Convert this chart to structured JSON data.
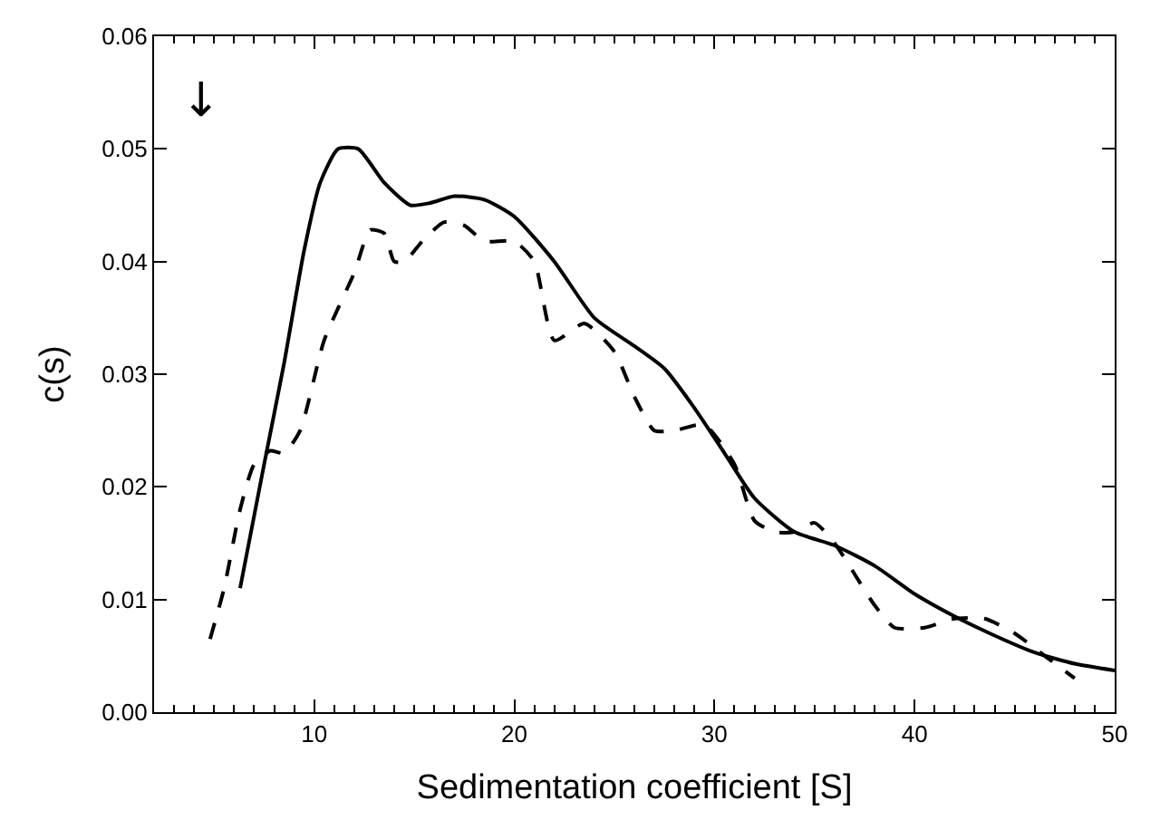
{
  "chart_data": {
    "type": "line",
    "xlabel": "Sedimentation coefficient [S]",
    "ylabel": "c(s)",
    "xlim": [
      2,
      50
    ],
    "xticks": [
      10,
      20,
      30,
      40,
      50
    ],
    "ylim": [
      0,
      0.06
    ],
    "yticks": [
      {
        "value": 0,
        "label": "0.00"
      },
      0.01,
      0.02,
      0.03,
      0.04,
      0.05,
      0.06
    ],
    "marker": "none",
    "annotations": [
      "↓"
    ],
    "series": [
      {
        "color": "#000000",
        "line_style": "solid",
        "x": [
          6.3,
          7.5,
          8.5,
          9.5,
          10.3,
          11.2,
          12.2,
          13.5,
          14.8,
          15.8,
          17,
          18.5,
          20,
          22,
          24,
          26,
          27.5,
          29,
          30.5,
          32,
          34,
          36,
          38,
          40,
          42,
          44,
          46,
          48,
          50
        ],
        "values": [
          0.011,
          0.022,
          0.031,
          0.041,
          0.047,
          0.05,
          0.05,
          0.047,
          0.045,
          0.0452,
          0.0458,
          0.0455,
          0.044,
          0.04,
          0.035,
          0.0325,
          0.0305,
          0.027,
          0.023,
          0.019,
          0.016,
          0.0148,
          0.013,
          0.0105,
          0.0085,
          0.0068,
          0.0053,
          0.0043,
          0.0037
        ]
      },
      {
        "color": "#000000",
        "line_style": "dashed",
        "x": [
          4.8,
          5.5,
          6.3,
          7,
          7.8,
          8.5,
          9.3,
          10.5,
          12,
          12.8,
          13.5,
          14,
          14.5,
          15.5,
          16.5,
          17.5,
          18.5,
          20,
          21,
          22,
          23.5,
          25,
          26,
          27,
          28,
          29.5,
          31,
          32,
          33,
          34,
          35,
          36,
          38,
          39,
          40.5,
          42,
          43.5,
          45,
          46.5,
          48
        ],
        "values": [
          0.0065,
          0.011,
          0.018,
          0.022,
          0.0232,
          0.023,
          0.025,
          0.033,
          0.039,
          0.0428,
          0.0425,
          0.04,
          0.04,
          0.042,
          0.0435,
          0.0432,
          0.0418,
          0.0418,
          0.04,
          0.033,
          0.0345,
          0.032,
          0.028,
          0.025,
          0.025,
          0.0255,
          0.022,
          0.017,
          0.016,
          0.016,
          0.0168,
          0.015,
          0.0095,
          0.0075,
          0.0075,
          0.0083,
          0.0083,
          0.007,
          0.005,
          0.003
        ]
      }
    ]
  }
}
